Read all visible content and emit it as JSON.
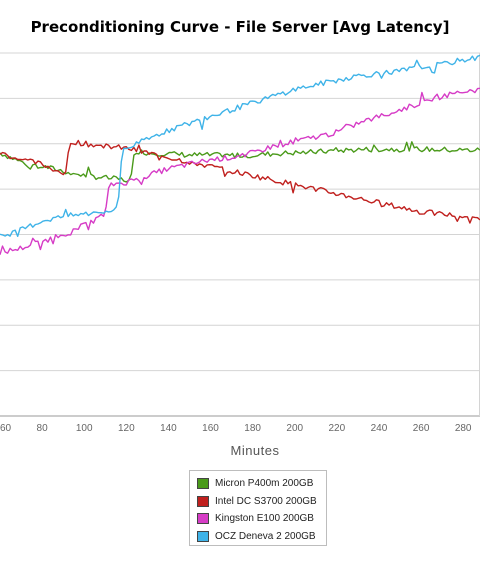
{
  "chart_data": {
    "type": "line",
    "title": "Preconditioning Curve - File Server [Avg Latency]",
    "xlabel": "Minutes",
    "ylabel": "",
    "xlim": [
      60,
      288
    ],
    "ylim": [
      0,
      8
    ],
    "grid": true,
    "legend_position": "bottom-center",
    "x_ticks": [
      60,
      80,
      100,
      120,
      140,
      160,
      180,
      200,
      220,
      240,
      260,
      280
    ],
    "series": [
      {
        "name": "Micron P400m 200GB",
        "color": "#4a9a1a",
        "x": [
          60,
          70,
          80,
          90,
          100,
          110,
          120,
          122,
          124,
          130,
          140,
          150,
          160,
          170,
          180,
          190,
          200,
          210,
          220,
          230,
          240,
          250,
          260,
          270,
          280,
          288
        ],
        "y": [
          5.8,
          5.6,
          5.5,
          5.4,
          5.3,
          5.25,
          5.2,
          5.15,
          5.85,
          5.8,
          5.78,
          5.75,
          5.75,
          5.74,
          5.75,
          5.78,
          5.8,
          5.82,
          5.85,
          5.87,
          5.88,
          5.88,
          5.88,
          5.87,
          5.86,
          5.86
        ]
      },
      {
        "name": "Intel DC S3700 200GB",
        "color": "#c0201e",
        "x": [
          60,
          70,
          80,
          90,
          91,
          93,
          95,
          100,
          110,
          120,
          130,
          140,
          150,
          160,
          170,
          180,
          190,
          200,
          210,
          220,
          230,
          240,
          250,
          260,
          270,
          280,
          288
        ],
        "y": [
          5.8,
          5.65,
          5.55,
          5.35,
          5.25,
          6.0,
          6.05,
          6.0,
          5.95,
          5.9,
          5.8,
          5.7,
          5.6,
          5.5,
          5.4,
          5.3,
          5.2,
          5.1,
          5.0,
          4.9,
          4.8,
          4.7,
          4.6,
          4.5,
          4.45,
          4.4,
          4.35
        ]
      },
      {
        "name": "Kingston E100 200GB",
        "color": "#d63cc6",
        "x": [
          60,
          70,
          80,
          90,
          100,
          110,
          112,
          120,
          130,
          140,
          150,
          160,
          170,
          180,
          190,
          200,
          210,
          220,
          230,
          240,
          250,
          260,
          270,
          280,
          288
        ],
        "y": [
          3.6,
          3.7,
          3.85,
          4.0,
          4.2,
          4.45,
          5.1,
          5.15,
          5.3,
          5.45,
          5.55,
          5.65,
          5.7,
          5.8,
          5.95,
          6.05,
          6.15,
          6.25,
          6.45,
          6.6,
          6.75,
          6.9,
          7.05,
          7.15,
          7.2
        ]
      },
      {
        "name": "OCZ Deneva 2 200GB",
        "color": "#3fb3e8",
        "x": [
          60,
          70,
          80,
          90,
          100,
          110,
          116,
          118,
          120,
          130,
          140,
          150,
          160,
          170,
          180,
          190,
          200,
          210,
          220,
          230,
          240,
          250,
          260,
          270,
          280,
          288
        ],
        "y": [
          3.95,
          4.1,
          4.3,
          4.4,
          4.45,
          4.5,
          4.55,
          5.9,
          5.9,
          6.1,
          6.3,
          6.45,
          6.6,
          6.75,
          6.9,
          7.05,
          7.2,
          7.3,
          7.4,
          7.5,
          7.55,
          7.6,
          7.7,
          7.75,
          7.85,
          7.9
        ]
      }
    ]
  }
}
